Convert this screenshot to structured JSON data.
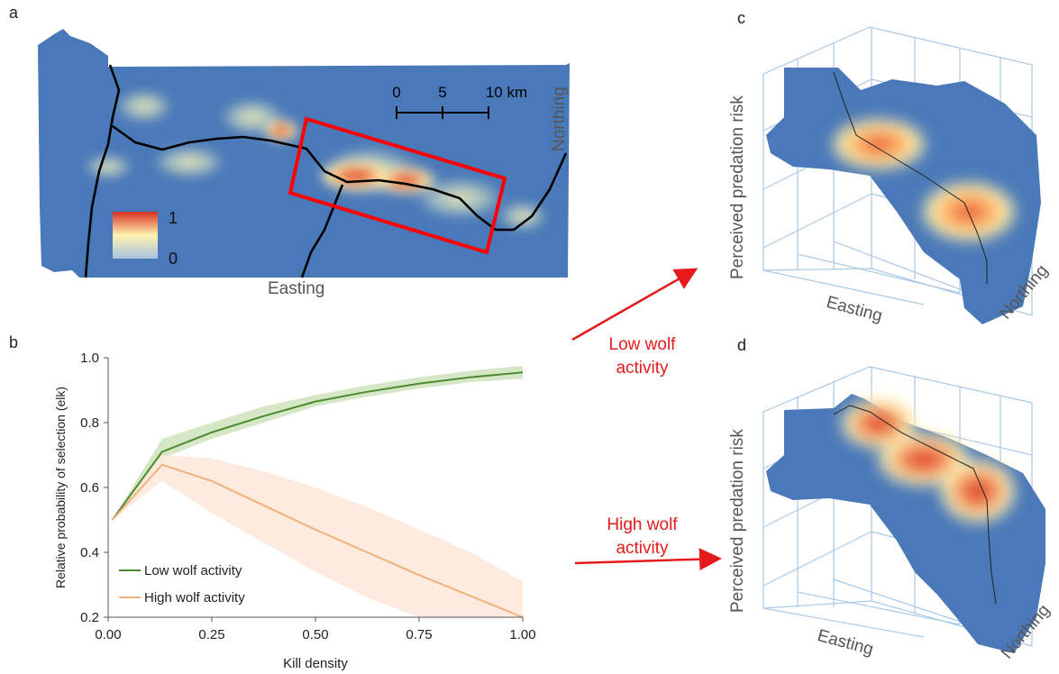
{
  "panels": {
    "a": "a",
    "b": "b",
    "c": "c",
    "d": "d"
  },
  "map": {
    "scale_ticks": [
      "0",
      "5",
      "10 km"
    ],
    "legend_max": "1",
    "legend_min": "0",
    "x_label": "Easting",
    "y_label": "Northing",
    "colors": {
      "background": "#4a79b9",
      "high": "#d7301f",
      "mid": "#fff3b0",
      "box": "#ff0000"
    }
  },
  "arrows": {
    "low_label": "Low wolf activity",
    "high_label": "High wolf activity",
    "color": "#e41a1c"
  },
  "surfaces": {
    "c": {
      "z_label": "Perceived predation risk",
      "x_label": "Easting",
      "y_label": "Northing"
    },
    "d": {
      "z_label": "Perceived predation risk",
      "x_label": "Easting",
      "y_label": "Northing"
    }
  },
  "chart_data": {
    "type": "line",
    "xlabel": "Kill density",
    "ylabel": "Relative probability of selection (elk)",
    "xlim": [
      0,
      1.0
    ],
    "ylim": [
      0.2,
      1.0
    ],
    "xticks": [
      "0.00",
      "0.25",
      "0.50",
      "0.75",
      "1.00"
    ],
    "yticks": [
      "0.2",
      "0.4",
      "0.6",
      "0.8",
      "1.0"
    ],
    "legend_position": "bottom-left",
    "series": [
      {
        "name": "Low wolf activity",
        "color": "#4e8a2f",
        "band_color": "#cfe3bd",
        "x": [
          0.01,
          0.13,
          0.25,
          0.375,
          0.5,
          0.625,
          0.75,
          0.875,
          1.0
        ],
        "y": [
          0.5,
          0.71,
          0.77,
          0.82,
          0.865,
          0.895,
          0.92,
          0.94,
          0.955
        ],
        "lower": [
          0.5,
          0.69,
          0.75,
          0.8,
          0.85,
          0.88,
          0.905,
          0.925,
          0.935
        ],
        "upper": [
          0.5,
          0.75,
          0.8,
          0.85,
          0.885,
          0.915,
          0.94,
          0.96,
          0.975
        ]
      },
      {
        "name": "High wolf activity",
        "color": "#f0b27a",
        "band_color": "#fde8d9",
        "x": [
          0.01,
          0.13,
          0.25,
          0.375,
          0.5,
          0.625,
          0.75,
          0.875,
          1.0
        ],
        "y": [
          0.5,
          0.67,
          0.62,
          0.545,
          0.47,
          0.4,
          0.33,
          0.265,
          0.2
        ],
        "lower": [
          0.5,
          0.62,
          0.52,
          0.43,
          0.34,
          0.26,
          0.2,
          0.2,
          0.2
        ],
        "upper": [
          0.5,
          0.7,
          0.69,
          0.65,
          0.6,
          0.54,
          0.47,
          0.4,
          0.31
        ]
      }
    ]
  }
}
